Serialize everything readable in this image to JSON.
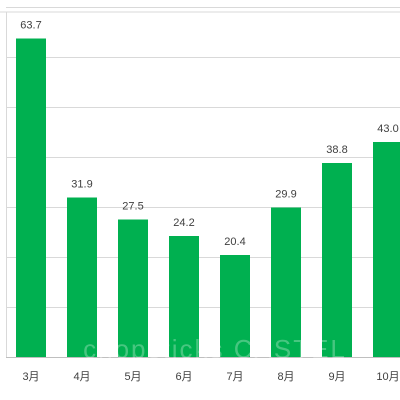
{
  "chart_data": {
    "type": "bar",
    "categories": [
      "3月",
      "4月",
      "5月",
      "6月",
      "7月",
      "8月",
      "9月",
      "10月"
    ],
    "values": [
      63.7,
      31.9,
      27.5,
      24.2,
      20.4,
      29.9,
      38.8,
      43.0
    ],
    "value_labels": [
      "63.7",
      "31.9",
      "27.5",
      "24.2",
      "20.4",
      "29.9",
      "38.8",
      "43.0"
    ],
    "ylim": [
      0,
      70
    ],
    "gridline_step": 10,
    "grid": true,
    "legend": "none",
    "bar_color": "#00b050",
    "watermark": "chopsticks CASTEL"
  }
}
